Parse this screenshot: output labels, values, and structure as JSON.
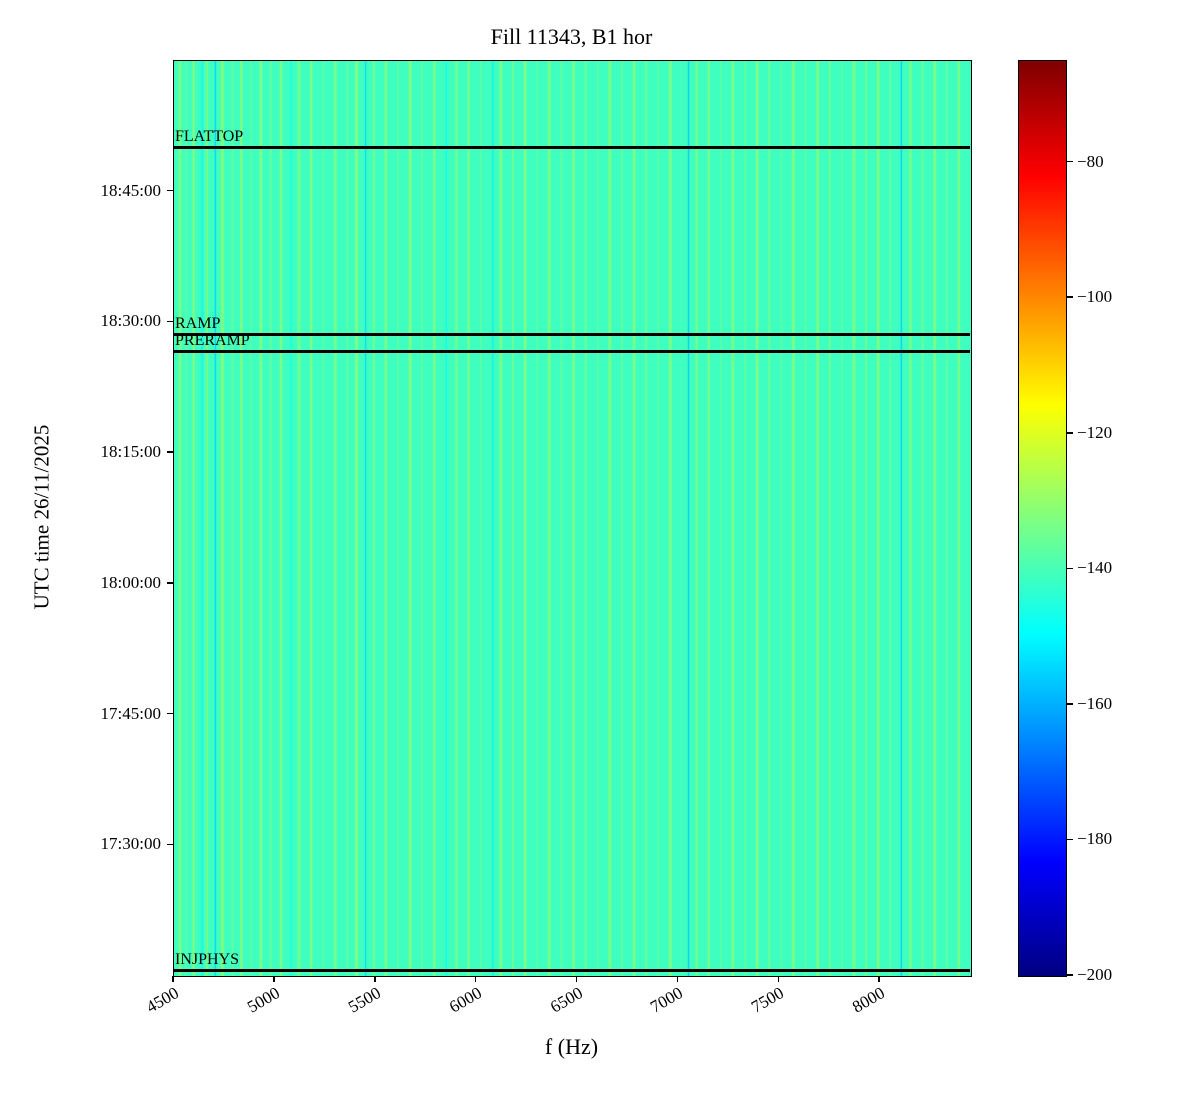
{
  "chart_data": {
    "type": "heatmap",
    "title": "Fill 11343, B1 hor",
    "xlabel": "f (Hz)",
    "ylabel": "UTC time 26/11/2025",
    "x_range": [
      4500,
      8450
    ],
    "x_ticks": [
      4500,
      5000,
      5500,
      6000,
      6500,
      7000,
      7500,
      8000
    ],
    "y_ticks": [
      "17:30:00",
      "17:45:00",
      "18:00:00",
      "18:15:00",
      "18:30:00",
      "18:45:00"
    ],
    "y_range_top": "19:00:00",
    "y_range_bottom": "17:15:00",
    "colormap": "jet",
    "clim": [
      -200,
      -65
    ],
    "colorbar_ticks": [
      -80,
      -100,
      -120,
      -140,
      -160,
      -180,
      -200
    ],
    "background_value": -141,
    "stripes": [
      {
        "f": 4530,
        "w": 14,
        "v": -133
      },
      {
        "f": 4560,
        "w": 8,
        "v": -137
      },
      {
        "f": 4597,
        "w": 10,
        "v": -131
      },
      {
        "f": 4640,
        "w": 6,
        "v": -150
      },
      {
        "f": 4663,
        "w": 12,
        "v": -134
      },
      {
        "f": 4705,
        "w": 5,
        "v": -156
      },
      {
        "f": 4740,
        "w": 16,
        "v": -133
      },
      {
        "f": 4790,
        "w": 10,
        "v": -136
      },
      {
        "f": 4833,
        "w": 12,
        "v": -132
      },
      {
        "f": 4880,
        "w": 8,
        "v": -137
      },
      {
        "f": 4930,
        "w": 14,
        "v": -133
      },
      {
        "f": 4980,
        "w": 8,
        "v": -135
      },
      {
        "f": 5030,
        "w": 12,
        "v": -132
      },
      {
        "f": 5080,
        "w": 6,
        "v": -148
      },
      {
        "f": 5120,
        "w": 14,
        "v": -134
      },
      {
        "f": 5180,
        "w": 10,
        "v": -131
      },
      {
        "f": 5240,
        "w": 8,
        "v": -137
      },
      {
        "f": 5300,
        "w": 12,
        "v": -133
      },
      {
        "f": 5360,
        "w": 8,
        "v": -136
      },
      {
        "f": 5405,
        "w": 14,
        "v": -132
      },
      {
        "f": 5450,
        "w": 5,
        "v": -155
      },
      {
        "f": 5490,
        "w": 10,
        "v": -134
      },
      {
        "f": 5550,
        "w": 12,
        "v": -133
      },
      {
        "f": 5610,
        "w": 8,
        "v": -137
      },
      {
        "f": 5670,
        "w": 14,
        "v": -132
      },
      {
        "f": 5730,
        "w": 8,
        "v": -136
      },
      {
        "f": 5790,
        "w": 12,
        "v": -133
      },
      {
        "f": 5850,
        "w": 6,
        "v": -149
      },
      {
        "f": 5900,
        "w": 12,
        "v": -134
      },
      {
        "f": 5960,
        "w": 10,
        "v": -132
      },
      {
        "f": 6020,
        "w": 8,
        "v": -137
      },
      {
        "f": 6080,
        "w": 6,
        "v": -151
      },
      {
        "f": 6120,
        "w": 14,
        "v": -133
      },
      {
        "f": 6180,
        "w": 10,
        "v": -135
      },
      {
        "f": 6240,
        "w": 12,
        "v": -132
      },
      {
        "f": 6300,
        "w": 8,
        "v": -137
      },
      {
        "f": 6360,
        "w": 14,
        "v": -133
      },
      {
        "f": 6420,
        "w": 8,
        "v": -136
      },
      {
        "f": 6480,
        "w": 12,
        "v": -132
      },
      {
        "f": 6540,
        "w": 10,
        "v": -135
      },
      {
        "f": 6600,
        "w": 8,
        "v": -137
      },
      {
        "f": 6660,
        "w": 14,
        "v": -133
      },
      {
        "f": 6720,
        "w": 8,
        "v": -136
      },
      {
        "f": 6780,
        "w": 12,
        "v": -132
      },
      {
        "f": 6840,
        "w": 10,
        "v": -135
      },
      {
        "f": 6900,
        "w": 8,
        "v": -137
      },
      {
        "f": 6960,
        "w": 14,
        "v": -133
      },
      {
        "f": 7050,
        "w": 5,
        "v": -157
      },
      {
        "f": 7090,
        "w": 12,
        "v": -134
      },
      {
        "f": 7150,
        "w": 10,
        "v": -132
      },
      {
        "f": 7210,
        "w": 8,
        "v": -137
      },
      {
        "f": 7270,
        "w": 14,
        "v": -133
      },
      {
        "f": 7330,
        "w": 8,
        "v": -136
      },
      {
        "f": 7390,
        "w": 12,
        "v": -132
      },
      {
        "f": 7450,
        "w": 10,
        "v": -135
      },
      {
        "f": 7510,
        "w": 8,
        "v": -137
      },
      {
        "f": 7570,
        "w": 14,
        "v": -133
      },
      {
        "f": 7630,
        "w": 8,
        "v": -136
      },
      {
        "f": 7690,
        "w": 12,
        "v": -132
      },
      {
        "f": 7750,
        "w": 10,
        "v": -135
      },
      {
        "f": 7810,
        "w": 8,
        "v": -137
      },
      {
        "f": 7870,
        "w": 14,
        "v": -133
      },
      {
        "f": 7930,
        "w": 10,
        "v": -135
      },
      {
        "f": 7990,
        "w": 12,
        "v": -132
      },
      {
        "f": 8050,
        "w": 8,
        "v": -136
      },
      {
        "f": 8105,
        "w": 6,
        "v": -157
      },
      {
        "f": 8150,
        "w": 12,
        "v": -133
      },
      {
        "f": 8210,
        "w": 10,
        "v": -135
      },
      {
        "f": 8270,
        "w": 12,
        "v": -132
      },
      {
        "f": 8330,
        "w": 8,
        "v": -136
      },
      {
        "f": 8390,
        "w": 12,
        "v": -133
      }
    ],
    "annotations": [
      {
        "label": "FLATTOP",
        "time": "18:50:00"
      },
      {
        "label": "RAMP",
        "time": "18:28:30"
      },
      {
        "label": "PRERAMP",
        "time": "18:26:30"
      },
      {
        "label": "INJPHYS",
        "time": "17:15:30"
      }
    ]
  }
}
